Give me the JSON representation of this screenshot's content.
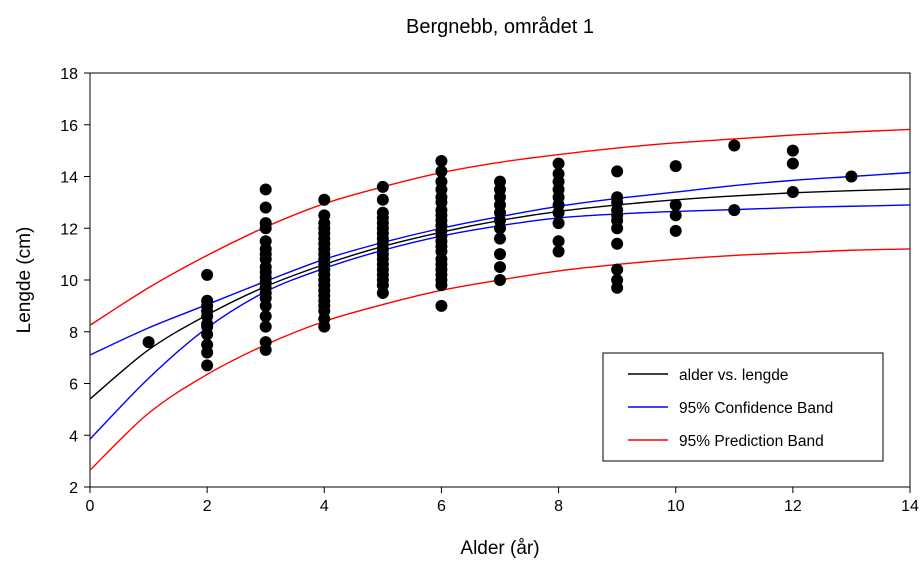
{
  "chart_data": {
    "type": "scatter",
    "title": "Bergnebb, området 1",
    "xlabel": "Alder (år)",
    "ylabel": "Lengde (cm)",
    "xlim": [
      0,
      14
    ],
    "ylim": [
      2,
      18
    ],
    "xticks": [
      "0",
      "2",
      "4",
      "6",
      "8",
      "10",
      "12",
      "14"
    ],
    "yticks": [
      "2",
      "4",
      "6",
      "8",
      "10",
      "12",
      "14",
      "16",
      "18"
    ],
    "grid": false,
    "legend_position": "lower-right",
    "points": [
      [
        1,
        7.6
      ],
      [
        2,
        10.2
      ],
      [
        2,
        9.2
      ],
      [
        2,
        9.0
      ],
      [
        2,
        8.8
      ],
      [
        2,
        8.6
      ],
      [
        2,
        8.3
      ],
      [
        2,
        8.2
      ],
      [
        2,
        7.9
      ],
      [
        2,
        7.5
      ],
      [
        2,
        7.2
      ],
      [
        2,
        6.7
      ],
      [
        3,
        13.5
      ],
      [
        3,
        12.8
      ],
      [
        3,
        12.2
      ],
      [
        3,
        12.0
      ],
      [
        3,
        11.5
      ],
      [
        3,
        11.2
      ],
      [
        3,
        11.0
      ],
      [
        3,
        10.8
      ],
      [
        3,
        10.5
      ],
      [
        3,
        10.3
      ],
      [
        3,
        10.1
      ],
      [
        3,
        9.9
      ],
      [
        3,
        9.7
      ],
      [
        3,
        9.5
      ],
      [
        3,
        9.3
      ],
      [
        3,
        9.0
      ],
      [
        3,
        8.6
      ],
      [
        3,
        8.2
      ],
      [
        3,
        7.6
      ],
      [
        3,
        7.3
      ],
      [
        4,
        13.1
      ],
      [
        4,
        12.5
      ],
      [
        4,
        12.2
      ],
      [
        4,
        12.0
      ],
      [
        4,
        11.8
      ],
      [
        4,
        11.6
      ],
      [
        4,
        11.4
      ],
      [
        4,
        11.2
      ],
      [
        4,
        11.0
      ],
      [
        4,
        10.8
      ],
      [
        4,
        10.6
      ],
      [
        4,
        10.4
      ],
      [
        4,
        10.2
      ],
      [
        4,
        10.0
      ],
      [
        4,
        9.8
      ],
      [
        4,
        9.6
      ],
      [
        4,
        9.4
      ],
      [
        4,
        9.2
      ],
      [
        4,
        9.0
      ],
      [
        4,
        8.8
      ],
      [
        4,
        8.5
      ],
      [
        4,
        8.2
      ],
      [
        5,
        13.6
      ],
      [
        5,
        13.1
      ],
      [
        5,
        12.6
      ],
      [
        5,
        12.4
      ],
      [
        5,
        12.2
      ],
      [
        5,
        12.0
      ],
      [
        5,
        11.8
      ],
      [
        5,
        11.6
      ],
      [
        5,
        11.4
      ],
      [
        5,
        11.2
      ],
      [
        5,
        11.0
      ],
      [
        5,
        10.8
      ],
      [
        5,
        10.6
      ],
      [
        5,
        10.4
      ],
      [
        5,
        10.2
      ],
      [
        5,
        10.0
      ],
      [
        5,
        9.8
      ],
      [
        5,
        9.5
      ],
      [
        6,
        14.6
      ],
      [
        6,
        14.2
      ],
      [
        6,
        13.8
      ],
      [
        6,
        13.5
      ],
      [
        6,
        13.2
      ],
      [
        6,
        13.0
      ],
      [
        6,
        12.7
      ],
      [
        6,
        12.5
      ],
      [
        6,
        12.3
      ],
      [
        6,
        12.1
      ],
      [
        6,
        11.9
      ],
      [
        6,
        11.7
      ],
      [
        6,
        11.5
      ],
      [
        6,
        11.3
      ],
      [
        6,
        11.1
      ],
      [
        6,
        10.8
      ],
      [
        6,
        10.6
      ],
      [
        6,
        10.4
      ],
      [
        6,
        10.2
      ],
      [
        6,
        10.0
      ],
      [
        6,
        9.8
      ],
      [
        6,
        9.0
      ],
      [
        7,
        13.8
      ],
      [
        7,
        13.5
      ],
      [
        7,
        13.2
      ],
      [
        7,
        12.9
      ],
      [
        7,
        12.6
      ],
      [
        7,
        12.3
      ],
      [
        7,
        12.0
      ],
      [
        7,
        11.6
      ],
      [
        7,
        11.0
      ],
      [
        7,
        10.5
      ],
      [
        7,
        10.0
      ],
      [
        8,
        14.5
      ],
      [
        8,
        14.1
      ],
      [
        8,
        13.8
      ],
      [
        8,
        13.5
      ],
      [
        8,
        13.2
      ],
      [
        8,
        12.9
      ],
      [
        8,
        12.6
      ],
      [
        8,
        12.2
      ],
      [
        8,
        11.5
      ],
      [
        8,
        11.1
      ],
      [
        9,
        14.2
      ],
      [
        9,
        13.2
      ],
      [
        9,
        13.0
      ],
      [
        9,
        12.7
      ],
      [
        9,
        12.5
      ],
      [
        9,
        12.3
      ],
      [
        9,
        12.0
      ],
      [
        9,
        11.4
      ],
      [
        9,
        10.4
      ],
      [
        9,
        10.0
      ],
      [
        9,
        9.7
      ],
      [
        10,
        14.4
      ],
      [
        10,
        12.9
      ],
      [
        10,
        12.5
      ],
      [
        10,
        11.9
      ],
      [
        11,
        15.2
      ],
      [
        11,
        12.7
      ],
      [
        12,
        15.0
      ],
      [
        12,
        14.5
      ],
      [
        12,
        13.4
      ],
      [
        13,
        14.0
      ]
    ],
    "series": [
      {
        "name": "alder vs. lengde",
        "color": "#000000",
        "x": [
          0,
          1,
          2,
          3,
          4,
          5,
          6,
          7,
          8,
          9,
          10,
          11,
          12,
          13,
          14
        ],
        "y": [
          5.4,
          7.3,
          8.65,
          9.75,
          10.6,
          11.3,
          11.85,
          12.3,
          12.65,
          12.9,
          13.1,
          13.25,
          13.37,
          13.45,
          13.52
        ]
      },
      {
        "name": "95% Confidence Band",
        "color": "#0000ff",
        "x": [
          0,
          1,
          2,
          3,
          4,
          5,
          6,
          7,
          8,
          9,
          10,
          11,
          12,
          13,
          14
        ],
        "y": [
          7.1,
          8.15,
          9.05,
          9.95,
          10.8,
          11.45,
          12.0,
          12.45,
          12.85,
          13.15,
          13.4,
          13.65,
          13.85,
          14.0,
          14.15
        ]
      },
      {
        "name": "",
        "color": "#0000ff",
        "x": [
          0,
          1,
          2,
          3,
          4,
          5,
          6,
          7,
          8,
          9,
          10,
          11,
          12,
          13,
          14
        ],
        "y": [
          3.85,
          6.2,
          8.15,
          9.55,
          10.45,
          11.15,
          11.7,
          12.1,
          12.4,
          12.55,
          12.65,
          12.72,
          12.8,
          12.85,
          12.9
        ]
      },
      {
        "name": "95% Prediction Band",
        "color": "#ff0000",
        "x": [
          0,
          1,
          2,
          3,
          4,
          5,
          6,
          7,
          8,
          9,
          10,
          11,
          12,
          13,
          14
        ],
        "y": [
          8.25,
          9.7,
          10.95,
          12.05,
          12.95,
          13.6,
          14.15,
          14.55,
          14.85,
          15.1,
          15.3,
          15.45,
          15.6,
          15.72,
          15.82
        ]
      },
      {
        "name": "",
        "color": "#ff0000",
        "x": [
          0,
          1,
          2,
          3,
          4,
          5,
          6,
          7,
          8,
          9,
          10,
          11,
          12,
          13,
          14
        ],
        "y": [
          2.65,
          4.85,
          6.35,
          7.5,
          8.4,
          9.05,
          9.6,
          10.0,
          10.35,
          10.6,
          10.8,
          10.95,
          11.05,
          11.15,
          11.2
        ]
      }
    ]
  }
}
